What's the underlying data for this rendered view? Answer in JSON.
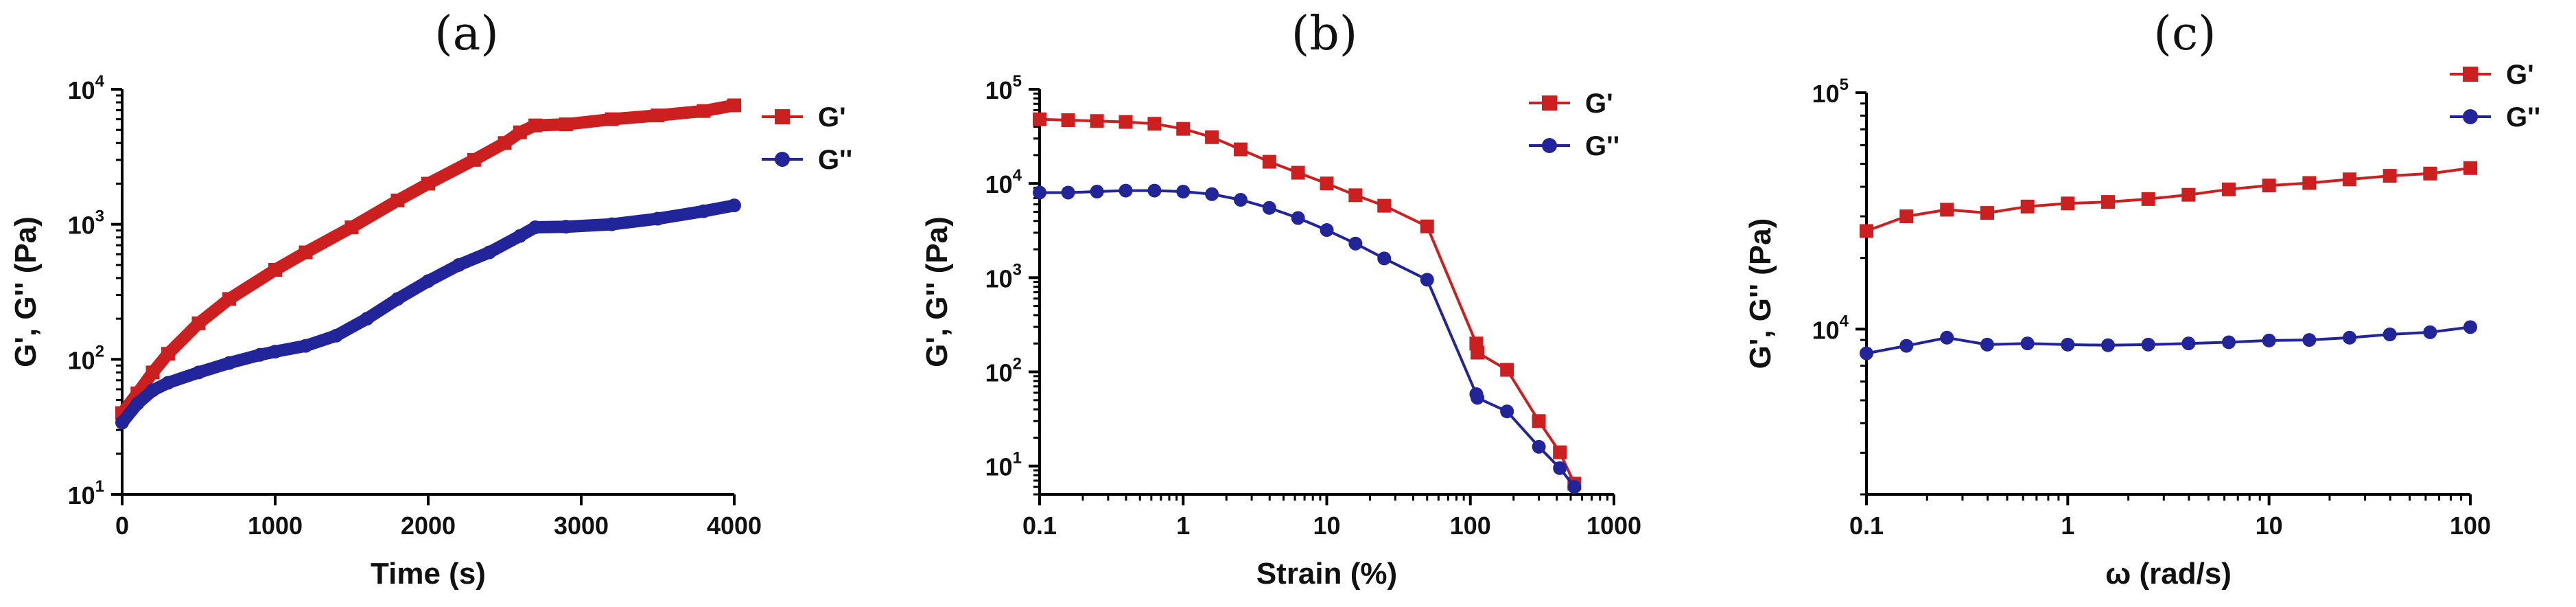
{
  "colors": {
    "gp": "#cc1f1f",
    "gpp": "#22249a"
  },
  "chart_data": [
    {
      "type": "line",
      "panel_label": "(a)",
      "xlabel": "Time (s)",
      "ylabel": "G', G'' (Pa)",
      "xscale": "linear",
      "yscale": "log",
      "xlim": [
        0,
        4000
      ],
      "ylim": [
        10,
        10000
      ],
      "xticks": [
        0,
        1000,
        2000,
        3000,
        4000
      ],
      "xtick_labels": [
        "0",
        "1000",
        "2000",
        "3000",
        "4000"
      ],
      "yticks": [
        10,
        100,
        1000,
        10000
      ],
      "ytick_base": [
        "10",
        "10",
        "10",
        "10"
      ],
      "ytick_exp": [
        "1",
        "2",
        "3",
        "4"
      ],
      "legend": "top-right",
      "series": [
        {
          "name": "G'",
          "marker": "square",
          "x": [
            0,
            100,
            200,
            300,
            500,
            700,
            1000,
            1200,
            1500,
            1800,
            2000,
            2300,
            2500,
            2600,
            2700,
            2900,
            3200,
            3500,
            3800,
            4000
          ],
          "y": [
            40,
            56,
            80,
            110,
            185,
            280,
            460,
            620,
            950,
            1500,
            2000,
            3000,
            4000,
            4800,
            5400,
            5500,
            6000,
            6400,
            6900,
            7600
          ]
        },
        {
          "name": "G''",
          "marker": "circle",
          "x": [
            0,
            100,
            200,
            300,
            500,
            700,
            900,
            1000,
            1200,
            1400,
            1600,
            1800,
            2000,
            2200,
            2400,
            2600,
            2700,
            2900,
            3200,
            3500,
            3800,
            4000
          ],
          "y": [
            34,
            47,
            59,
            67,
            80,
            94,
            108,
            114,
            126,
            150,
            200,
            280,
            380,
            500,
            620,
            820,
            950,
            960,
            1000,
            1100,
            1250,
            1380
          ]
        }
      ]
    },
    {
      "type": "line",
      "panel_label": "(b)",
      "xlabel": "Strain (%)",
      "ylabel": "G', G'' (Pa)",
      "xscale": "log",
      "yscale": "log",
      "xlim": [
        0.1,
        1000
      ],
      "ylim": [
        5,
        100000
      ],
      "xticks": [
        0.1,
        1,
        10,
        100,
        1000
      ],
      "xtick_labels": [
        "0.1",
        "1",
        "10",
        "100",
        "1000"
      ],
      "yticks": [
        10,
        100,
        1000,
        10000,
        100000
      ],
      "ytick_base": [
        "10",
        "10",
        "10",
        "10",
        "10"
      ],
      "ytick_exp": [
        "1",
        "2",
        "3",
        "4",
        "5"
      ],
      "legend": "top-right",
      "series": [
        {
          "name": "G'",
          "marker": "square",
          "x": [
            0.1,
            0.158,
            0.251,
            0.398,
            0.631,
            1,
            1.585,
            2.512,
            3.981,
            6.31,
            10,
            15.85,
            25.12,
            50,
            110,
            112,
            180,
            300,
            420,
            530
          ],
          "y": [
            48000,
            47000,
            46000,
            45000,
            43000,
            38000,
            31000,
            23000,
            17000,
            13000,
            10000,
            7500,
            5800,
            3500,
            200,
            160,
            105,
            30,
            14,
            6.5
          ]
        },
        {
          "name": "G''",
          "marker": "circle",
          "x": [
            0.1,
            0.158,
            0.251,
            0.398,
            0.631,
            1,
            1.585,
            2.512,
            3.981,
            6.31,
            10,
            15.85,
            25.12,
            50,
            110,
            112,
            180,
            300,
            420,
            530
          ],
          "y": [
            8000,
            8000,
            8200,
            8400,
            8400,
            8200,
            7700,
            6700,
            5500,
            4300,
            3200,
            2300,
            1600,
            950,
            58,
            53,
            38,
            16,
            9.5,
            6
          ]
        }
      ]
    },
    {
      "type": "line",
      "panel_label": "(c)",
      "xlabel": "ω (rad/s)",
      "ylabel": "G', G'' (Pa)",
      "xscale": "log",
      "yscale": "log",
      "xlim": [
        0.1,
        100
      ],
      "ylim": [
        2000,
        100000
      ],
      "xticks": [
        0.1,
        1,
        10,
        100
      ],
      "xtick_labels": [
        "0.1",
        "1",
        "10",
        "100"
      ],
      "yticks": [
        10000,
        100000
      ],
      "ytick_base": [
        "10",
        "10"
      ],
      "ytick_exp": [
        "4",
        "5"
      ],
      "legend": "top-right",
      "series": [
        {
          "name": "G'",
          "marker": "square",
          "x": [
            0.1,
            0.158,
            0.251,
            0.398,
            0.631,
            1,
            1.585,
            2.512,
            3.981,
            6.31,
            10,
            15.85,
            25.12,
            39.81,
            63.1,
            100
          ],
          "y": [
            26000,
            30000,
            32000,
            31000,
            33000,
            34000,
            34500,
            35500,
            37000,
            39000,
            40500,
            41500,
            43000,
            44500,
            45500,
            48000
          ]
        },
        {
          "name": "G''",
          "marker": "circle",
          "x": [
            0.1,
            0.158,
            0.251,
            0.398,
            0.631,
            1,
            1.585,
            2.512,
            3.981,
            6.31,
            10,
            15.85,
            25.12,
            39.81,
            63.1,
            100
          ],
          "y": [
            7900,
            8500,
            9200,
            8600,
            8700,
            8600,
            8550,
            8600,
            8700,
            8800,
            8950,
            9000,
            9200,
            9500,
            9700,
            10200
          ]
        }
      ]
    }
  ]
}
